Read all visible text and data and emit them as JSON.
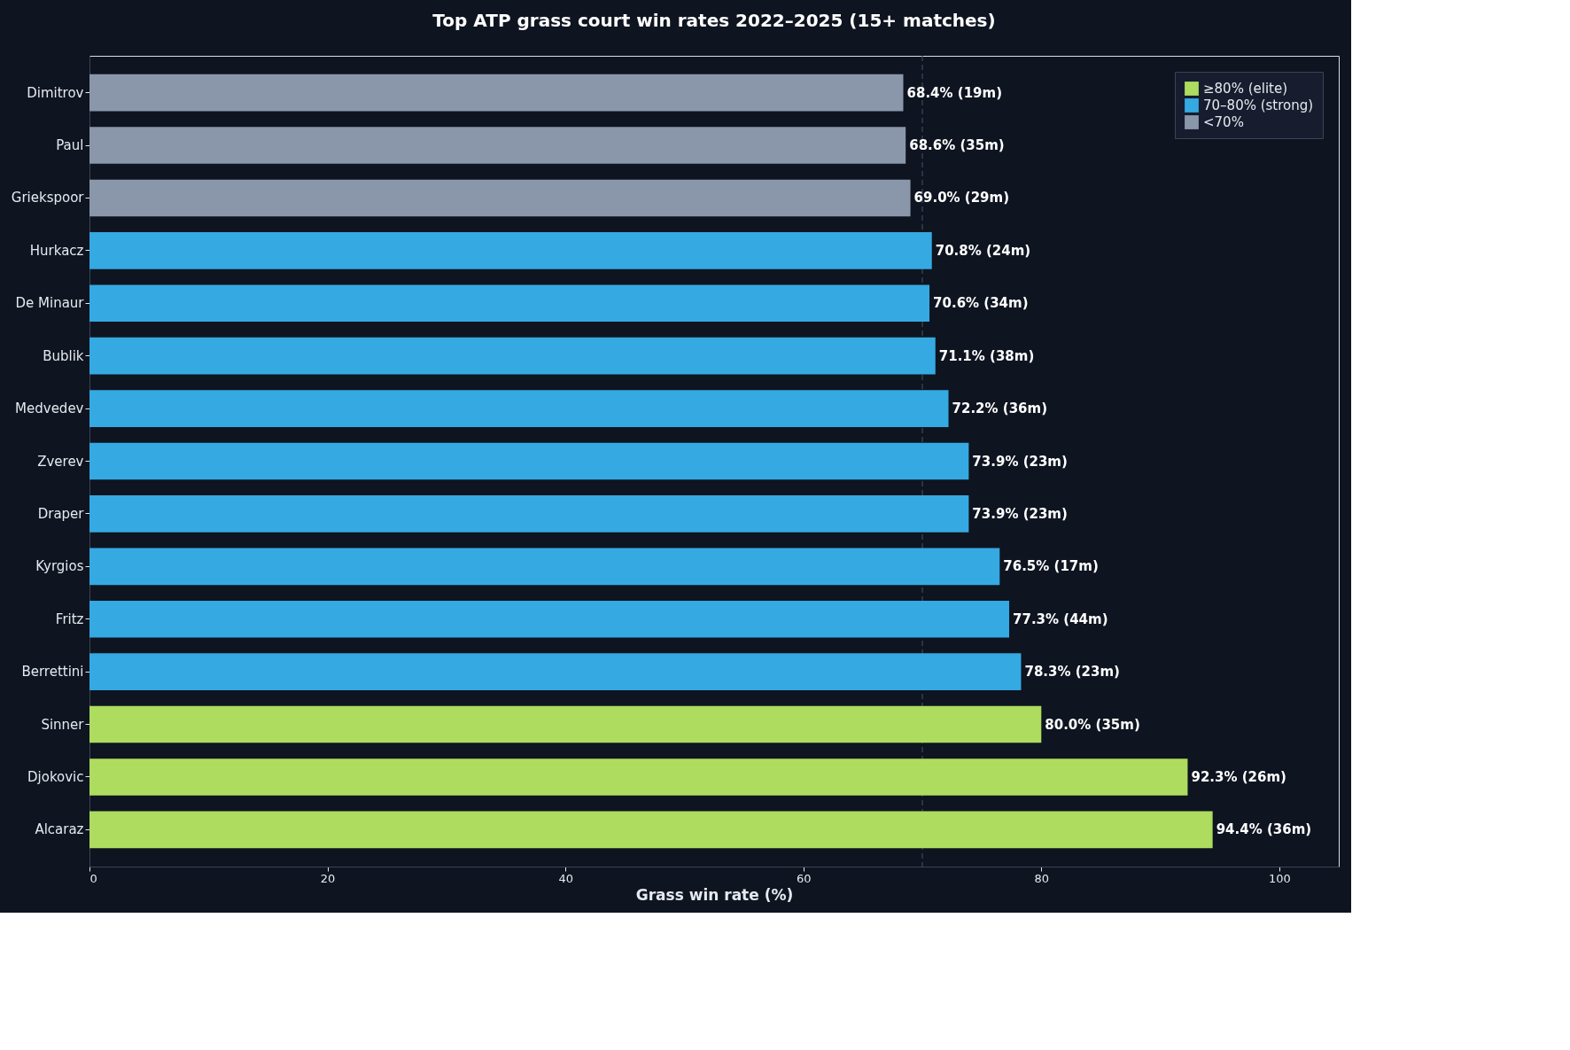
{
  "chart_data": {
    "type": "bar",
    "orientation": "horizontal",
    "title": "Top ATP grass court win rates 2022–2025 (15+ matches)",
    "xlabel": "Grass win rate (%)",
    "categories": [
      "Dimitrov",
      "Paul",
      "Griekspoor",
      "Hurkacz",
      "De Minaur",
      "Bublik",
      "Medvedev",
      "Zverev",
      "Draper",
      "Kyrgios",
      "Fritz",
      "Berrettini",
      "Sinner",
      "Djokovic",
      "Alcaraz"
    ],
    "series": [
      {
        "name": "≥80% (elite)",
        "color": "#addc5f",
        "values": [
          null,
          null,
          null,
          null,
          null,
          null,
          null,
          null,
          null,
          null,
          null,
          null,
          80.0,
          92.3,
          94.4
        ],
        "value_labels": [
          null,
          null,
          null,
          null,
          null,
          null,
          null,
          null,
          null,
          null,
          null,
          null,
          "80.0% (35m)",
          "92.3% (26m)",
          "94.4% (36m)"
        ]
      },
      {
        "name": "70–80% (strong)",
        "color": "#35a9e2",
        "values": [
          null,
          null,
          null,
          70.8,
          70.6,
          71.1,
          72.2,
          73.9,
          73.9,
          76.5,
          77.3,
          78.3,
          null,
          null,
          null
        ],
        "value_labels": [
          null,
          null,
          null,
          "70.8% (24m)",
          "70.6% (34m)",
          "71.1% (38m)",
          "72.2% (36m)",
          "73.9% (23m)",
          "73.9% (23m)",
          "76.5% (17m)",
          "77.3% (44m)",
          "78.3% (23m)",
          null,
          null,
          null
        ]
      },
      {
        "name": "<70%",
        "color": "#8a97ab",
        "values": [
          68.4,
          68.6,
          69.0,
          null,
          null,
          null,
          null,
          null,
          null,
          null,
          null,
          null,
          null,
          null,
          null
        ],
        "value_labels": [
          "68.4% (19m)",
          "68.6% (35m)",
          "69.0% (29m)",
          null,
          null,
          null,
          null,
          null,
          null,
          null,
          null,
          null,
          null,
          null,
          null
        ]
      }
    ],
    "xlim": [
      0,
      105
    ],
    "xticks": [
      0,
      20,
      40,
      60,
      80,
      100
    ],
    "ref_lines": [
      {
        "axis": "x",
        "value": 70,
        "color": "#3d4b5e",
        "line_style": "dashed"
      }
    ],
    "grid": false,
    "legend": "top right"
  }
}
